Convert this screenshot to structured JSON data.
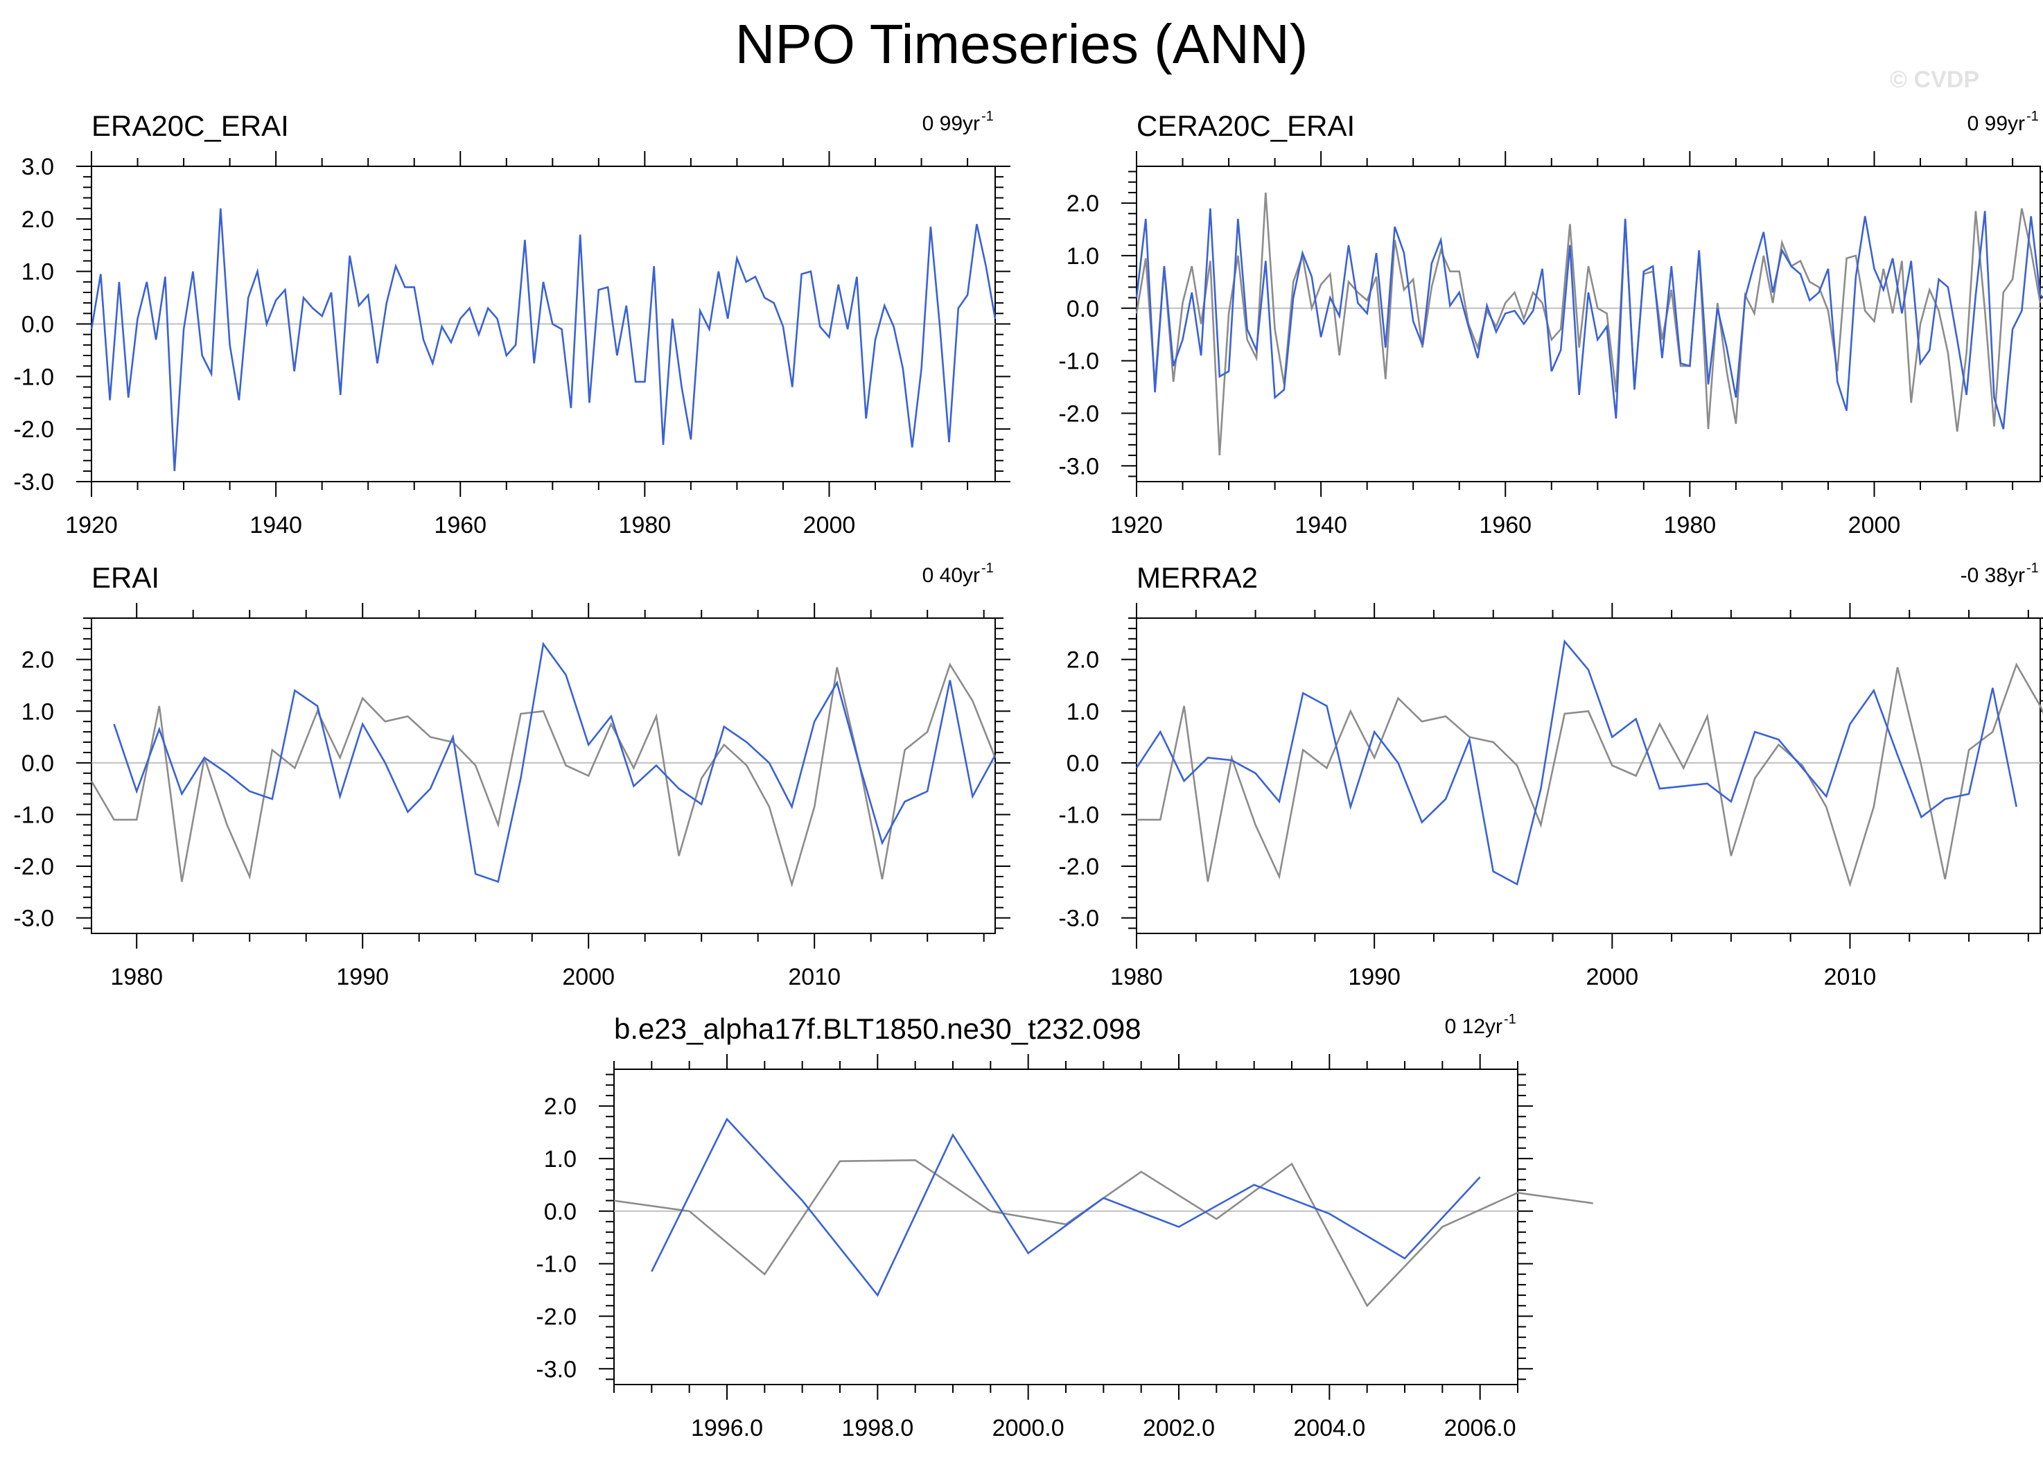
{
  "title": "NPO Timeseries (ANN)",
  "watermark": "© CVDP",
  "colors": {
    "series": "#3a62d6",
    "reference": "#8c8c8c",
    "zero_line": "#c0c0c0"
  },
  "chart_data": [
    {
      "type": "line",
      "title": "ERA20C_ERAI",
      "trend": "0 99yr",
      "trend_unit": "-1",
      "xlim": [
        1920,
        2018
      ],
      "ylim": [
        -3.0,
        3.0
      ],
      "xticks": [
        1920,
        1940,
        1960,
        1980,
        2000
      ],
      "xtick_labels": [
        "1920",
        "1940",
        "1960",
        "1980",
        "2000"
      ],
      "yticks": [
        3.0,
        2.0,
        1.0,
        0.0,
        -1.0,
        -2.0,
        -3.0
      ],
      "ytick_labels": [
        "3.0",
        "2.0",
        "1.0",
        "0.0",
        "-1.0",
        "-2.0",
        "-3.0"
      ],
      "series": [
        {
          "role": "blue",
          "x0": 1920,
          "values": [
            -0.1,
            0.95,
            -1.45,
            0.8,
            -1.4,
            0.1,
            0.8,
            -0.3,
            0.9,
            -2.8,
            -0.1,
            1.0,
            -0.6,
            -0.95,
            2.2,
            -0.4,
            -1.45,
            0.5,
            1.0,
            0.0,
            0.45,
            0.65,
            -0.9,
            0.5,
            0.3,
            0.15,
            0.6,
            -1.35,
            1.3,
            0.35,
            0.55,
            -0.75,
            0.4,
            1.1,
            0.7,
            0.7,
            -0.3,
            -0.75,
            -0.05,
            -0.35,
            0.1,
            0.3,
            -0.2,
            0.3,
            0.1,
            -0.6,
            -0.4,
            1.6,
            -0.75,
            0.8,
            0.0,
            -0.1,
            -1.6,
            1.7,
            -1.5,
            0.65,
            0.7,
            -0.6,
            0.35,
            -1.1,
            -1.1,
            1.1,
            -2.3,
            0.1,
            -1.2,
            -2.2,
            0.25,
            -0.1,
            1.0,
            0.1,
            1.25,
            0.8,
            0.9,
            0.5,
            0.4,
            -0.05,
            -1.2,
            0.95,
            1.0,
            -0.05,
            -0.25,
            0.75,
            -0.1,
            0.9,
            -1.8,
            -0.3,
            0.35,
            -0.05,
            -0.85,
            -2.35,
            -0.85,
            1.85,
            -0.05,
            -2.25,
            0.3,
            0.55,
            1.9,
            1.1,
            0.1
          ]
        }
      ]
    },
    {
      "type": "line",
      "title": "CERA20C_ERAI",
      "trend": "0 99yr",
      "trend_unit": "-1",
      "xlim": [
        1920,
        2018
      ],
      "ylim": [
        -3.3,
        2.7
      ],
      "xticks": [
        1920,
        1940,
        1960,
        1980,
        2000
      ],
      "xtick_labels": [
        "1920",
        "1940",
        "1960",
        "1980",
        "2000"
      ],
      "yticks": [
        2.0,
        1.0,
        0.0,
        -1.0,
        -2.0,
        -3.0
      ],
      "ytick_labels": [
        "2.0",
        "1.0",
        "0.0",
        "-1.0",
        "-2.0",
        "-3.0"
      ],
      "series": [
        {
          "role": "gray",
          "x0": 1920,
          "values": [
            -0.1,
            0.95,
            -1.45,
            0.8,
            -1.4,
            0.1,
            0.8,
            -0.3,
            0.9,
            -2.8,
            -0.1,
            1.0,
            -0.6,
            -0.95,
            2.2,
            -0.4,
            -1.45,
            0.5,
            1.0,
            0.0,
            0.45,
            0.65,
            -0.9,
            0.5,
            0.3,
            0.15,
            0.6,
            -1.35,
            1.3,
            0.35,
            0.55,
            -0.75,
            0.4,
            1.1,
            0.7,
            0.7,
            -0.3,
            -0.75,
            -0.05,
            -0.35,
            0.1,
            0.3,
            -0.2,
            0.3,
            0.1,
            -0.6,
            -0.4,
            1.6,
            -0.75,
            0.8,
            0.0,
            -0.1,
            -1.6,
            1.7,
            -1.5,
            0.65,
            0.7,
            -0.6,
            0.35,
            -1.1,
            -1.1,
            1.1,
            -2.3,
            0.1,
            -1.2,
            -2.2,
            0.25,
            -0.1,
            1.0,
            0.1,
            1.25,
            0.8,
            0.9,
            0.5,
            0.4,
            -0.05,
            -1.2,
            0.95,
            1.0,
            -0.05,
            -0.25,
            0.75,
            -0.1,
            0.9,
            -1.8,
            -0.3,
            0.35,
            -0.05,
            -0.85,
            -2.35,
            -0.85,
            1.85,
            -0.05,
            -2.25,
            0.3,
            0.55,
            1.9,
            1.1,
            0.1
          ]
        },
        {
          "role": "blue",
          "x0": 1920,
          "values": [
            0.2,
            1.7,
            -1.6,
            0.8,
            -1.1,
            -0.6,
            0.3,
            -0.9,
            1.9,
            -1.3,
            -1.2,
            1.7,
            -0.4,
            -0.8,
            0.9,
            -1.7,
            -1.55,
            0.2,
            1.05,
            0.6,
            -0.55,
            0.2,
            -0.15,
            1.2,
            0.1,
            -0.1,
            1.05,
            -0.75,
            1.55,
            1.05,
            -0.25,
            -0.7,
            0.85,
            1.3,
            0.05,
            0.3,
            -0.35,
            -0.95,
            0.05,
            -0.45,
            -0.1,
            -0.05,
            -0.3,
            -0.05,
            0.75,
            -1.2,
            -0.8,
            1.2,
            -1.65,
            0.3,
            -0.6,
            -0.35,
            -2.1,
            1.7,
            -1.55,
            0.7,
            0.8,
            -0.95,
            0.8,
            -1.05,
            -1.1,
            1.1,
            -1.45,
            0.0,
            -0.75,
            -1.7,
            0.2,
            0.85,
            1.45,
            0.3,
            1.1,
            0.8,
            0.65,
            0.15,
            0.3,
            0.75,
            -1.4,
            -1.95,
            0.6,
            1.75,
            0.75,
            0.35,
            0.95,
            -0.1,
            0.9,
            -1.05,
            -0.8,
            0.55,
            0.4,
            -0.6,
            -1.65,
            0.25,
            1.85,
            -1.7,
            -2.3,
            -0.4,
            -0.05,
            1.75,
            0.25,
            0.1
          ]
        }
      ]
    },
    {
      "type": "line",
      "title": "ERAI",
      "trend": "0 40yr",
      "trend_unit": "-1",
      "xlim": [
        1978,
        2018
      ],
      "ylim": [
        -3.3,
        2.8
      ],
      "xticks": [
        1980,
        1990,
        2000,
        2010
      ],
      "xtick_labels": [
        "1980",
        "1990",
        "2000",
        "2010"
      ],
      "yticks": [
        2.0,
        1.0,
        0.0,
        -1.0,
        -2.0,
        -3.0
      ],
      "ytick_labels": [
        "2.0",
        "1.0",
        "0.0",
        "-1.0",
        "-2.0",
        "-3.0"
      ],
      "series": [
        {
          "role": "gray",
          "x0": 1978,
          "values": [
            -0.35,
            -1.1,
            -1.1,
            1.1,
            -2.3,
            0.1,
            -1.2,
            -2.2,
            0.25,
            -0.1,
            1.0,
            0.1,
            1.25,
            0.8,
            0.9,
            0.5,
            0.4,
            -0.05,
            -1.2,
            0.95,
            1.0,
            -0.05,
            -0.25,
            0.75,
            -0.1,
            0.9,
            -1.8,
            -0.3,
            0.35,
            -0.05,
            -0.85,
            -2.35,
            -0.85,
            1.85,
            -0.05,
            -2.25,
            0.25,
            0.6,
            1.9,
            1.2,
            0.1
          ]
        },
        {
          "role": "blue",
          "x0": 1979,
          "values": [
            0.75,
            -0.55,
            0.65,
            -0.6,
            0.1,
            -0.2,
            -0.55,
            -0.7,
            1.4,
            1.1,
            -0.65,
            0.75,
            0.0,
            -0.95,
            -0.5,
            0.5,
            -2.15,
            -2.3,
            -0.3,
            2.3,
            1.7,
            0.35,
            0.9,
            -0.45,
            -0.05,
            -0.5,
            -0.8,
            0.7,
            0.4,
            0.0,
            -0.85,
            0.8,
            1.55,
            -0.05,
            -1.55,
            -0.75,
            -0.55,
            1.6,
            -0.65,
            0.15
          ]
        }
      ]
    },
    {
      "type": "line",
      "title": "MERRA2",
      "trend": "-0 38yr",
      "trend_unit": "-1",
      "xlim": [
        1980,
        2018
      ],
      "ylim": [
        -3.3,
        2.8
      ],
      "xticks": [
        1980,
        1990,
        2000,
        2010
      ],
      "xtick_labels": [
        "1980",
        "1990",
        "2000",
        "2010"
      ],
      "yticks": [
        2.0,
        1.0,
        0.0,
        -1.0,
        -2.0,
        -3.0
      ],
      "ytick_labels": [
        "2.0",
        "1.0",
        "0.0",
        "-1.0",
        "-2.0",
        "-3.0"
      ],
      "series": [
        {
          "role": "gray",
          "x0": 1980,
          "values": [
            -1.1,
            -1.1,
            1.1,
            -2.3,
            0.1,
            -1.2,
            -2.2,
            0.25,
            -0.1,
            1.0,
            0.1,
            1.25,
            0.8,
            0.9,
            0.5,
            0.4,
            -0.05,
            -1.2,
            0.95,
            1.0,
            -0.05,
            -0.25,
            0.75,
            -0.1,
            0.9,
            -1.8,
            -0.3,
            0.35,
            -0.05,
            -0.85,
            -2.35,
            -0.85,
            1.85,
            -0.05,
            -2.25,
            0.25,
            0.6,
            1.9,
            1.1,
            0.1
          ]
        },
        {
          "role": "blue",
          "x0": 1980,
          "values": [
            -0.1,
            0.6,
            -0.35,
            0.1,
            0.05,
            -0.2,
            -0.75,
            1.35,
            1.1,
            -0.85,
            0.6,
            0.0,
            -1.15,
            -0.7,
            0.45,
            -2.1,
            -2.35,
            -0.5,
            2.35,
            1.8,
            0.5,
            0.85,
            -0.5,
            -0.45,
            -0.4,
            -0.75,
            0.6,
            0.45,
            -0.1,
            -0.65,
            0.75,
            1.4,
            0.15,
            -1.05,
            -0.7,
            -0.6,
            1.45,
            -0.85
          ]
        }
      ]
    },
    {
      "type": "line",
      "title": "b.e23_alpha17f.BLT1850.ne30_t232.098",
      "trend": "0 12yr",
      "trend_unit": "-1",
      "xlim": [
        1994.5,
        2006.5
      ],
      "ylim": [
        -3.3,
        2.7
      ],
      "xticks": [
        1996.0,
        1998.0,
        2000.0,
        2002.0,
        2004.0,
        2006.0
      ],
      "xtick_labels": [
        "1996.0",
        "1998.0",
        "2000.0",
        "2002.0",
        "2004.0",
        "2006.0"
      ],
      "yticks": [
        2.0,
        1.0,
        0.0,
        -1.0,
        -2.0,
        -3.0
      ],
      "ytick_labels": [
        "2.0",
        "1.0",
        "0.0",
        "-1.0",
        "-2.0",
        "-3.0"
      ],
      "series": [
        {
          "role": "gray",
          "x0": 1994.5,
          "values": [
            0.2,
            0.0,
            -1.2,
            0.95,
            0.97,
            0.0,
            -0.25,
            0.75,
            -0.15,
            0.9,
            -1.8,
            -0.3,
            0.35,
            0.15
          ]
        },
        {
          "role": "blue",
          "x0": 1995,
          "values": [
            -1.15,
            1.75,
            0.2,
            -1.6,
            1.45,
            -0.8,
            0.25,
            -0.3,
            0.5,
            -0.05,
            -0.9,
            0.65
          ]
        }
      ]
    }
  ]
}
